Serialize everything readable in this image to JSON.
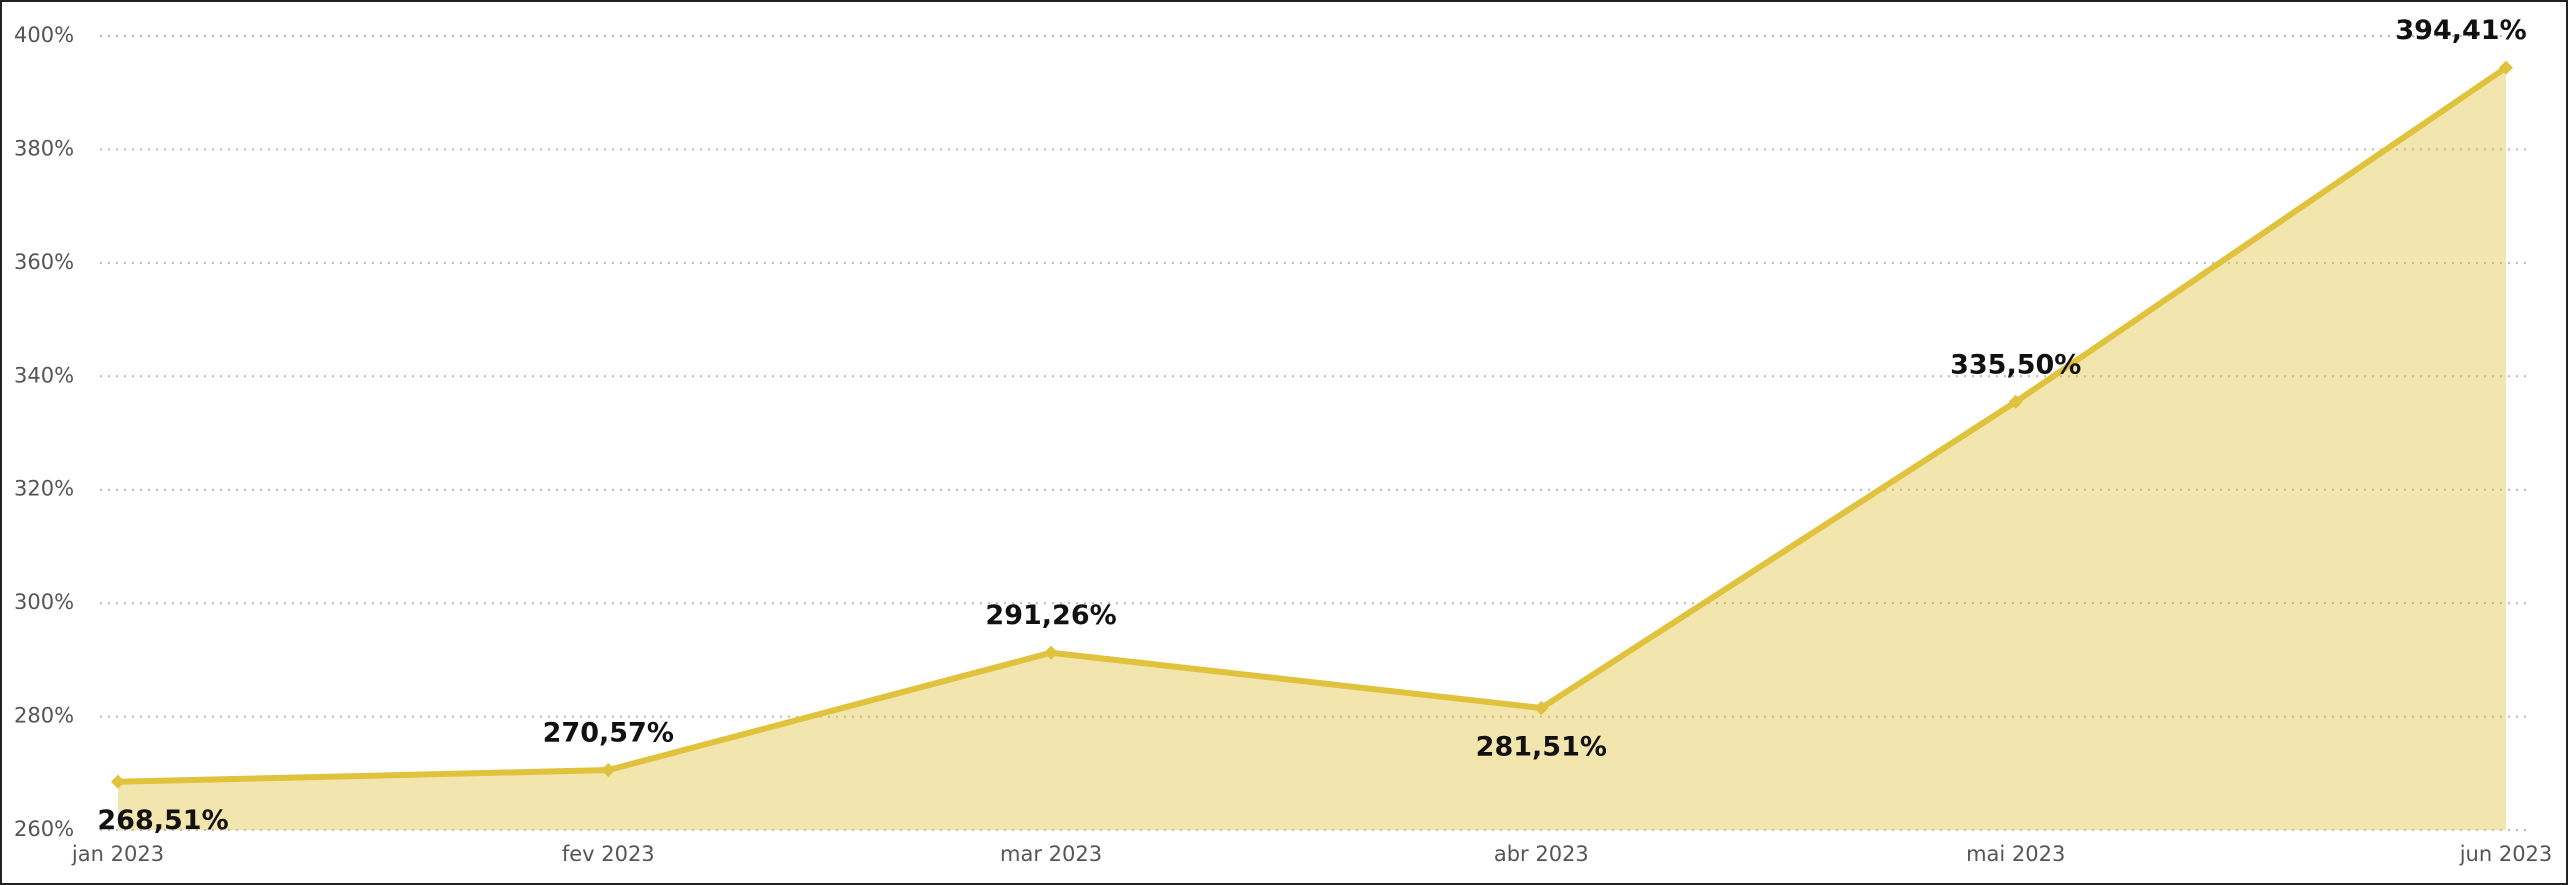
{
  "chart_data": {
    "type": "area",
    "x": [
      "2023-01",
      "2023-02",
      "2023-03",
      "2023-04",
      "2023-05",
      "2023-06"
    ],
    "series": [
      {
        "color": "#e0c23c",
        "values": [
          268.51,
          270.57,
          291.26,
          281.51,
          335.5,
          394.41
        ],
        "value_labels": [
          "268,51%",
          "270,57%",
          "291,26%",
          "281,51%",
          "335,50%",
          "394,41%"
        ]
      }
    ],
    "xlim": [
      "2023-01",
      "2023-06"
    ],
    "xticks": [
      {
        "value": "2023-01",
        "label": "jan 2023"
      },
      {
        "value": "2023-02",
        "label": "fev 2023"
      },
      {
        "value": "2023-03",
        "label": "mar 2023"
      },
      {
        "value": "2023-04",
        "label": "abr 2023"
      },
      {
        "value": "2023-05",
        "label": "mai 2023"
      },
      {
        "value": "2023-06",
        "label": "jun 2023"
      }
    ],
    "ylim": [
      260,
      400
    ],
    "yticks": [
      {
        "value": 260,
        "label": "260%"
      },
      {
        "value": 280,
        "label": "280%"
      },
      {
        "value": 300,
        "label": "300%"
      },
      {
        "value": 320,
        "label": "320%"
      },
      {
        "value": 340,
        "label": "340%"
      },
      {
        "value": 360,
        "label": "360%"
      },
      {
        "value": 380,
        "label": "380%"
      },
      {
        "value": 400,
        "label": "400%"
      }
    ],
    "grid": true
  }
}
